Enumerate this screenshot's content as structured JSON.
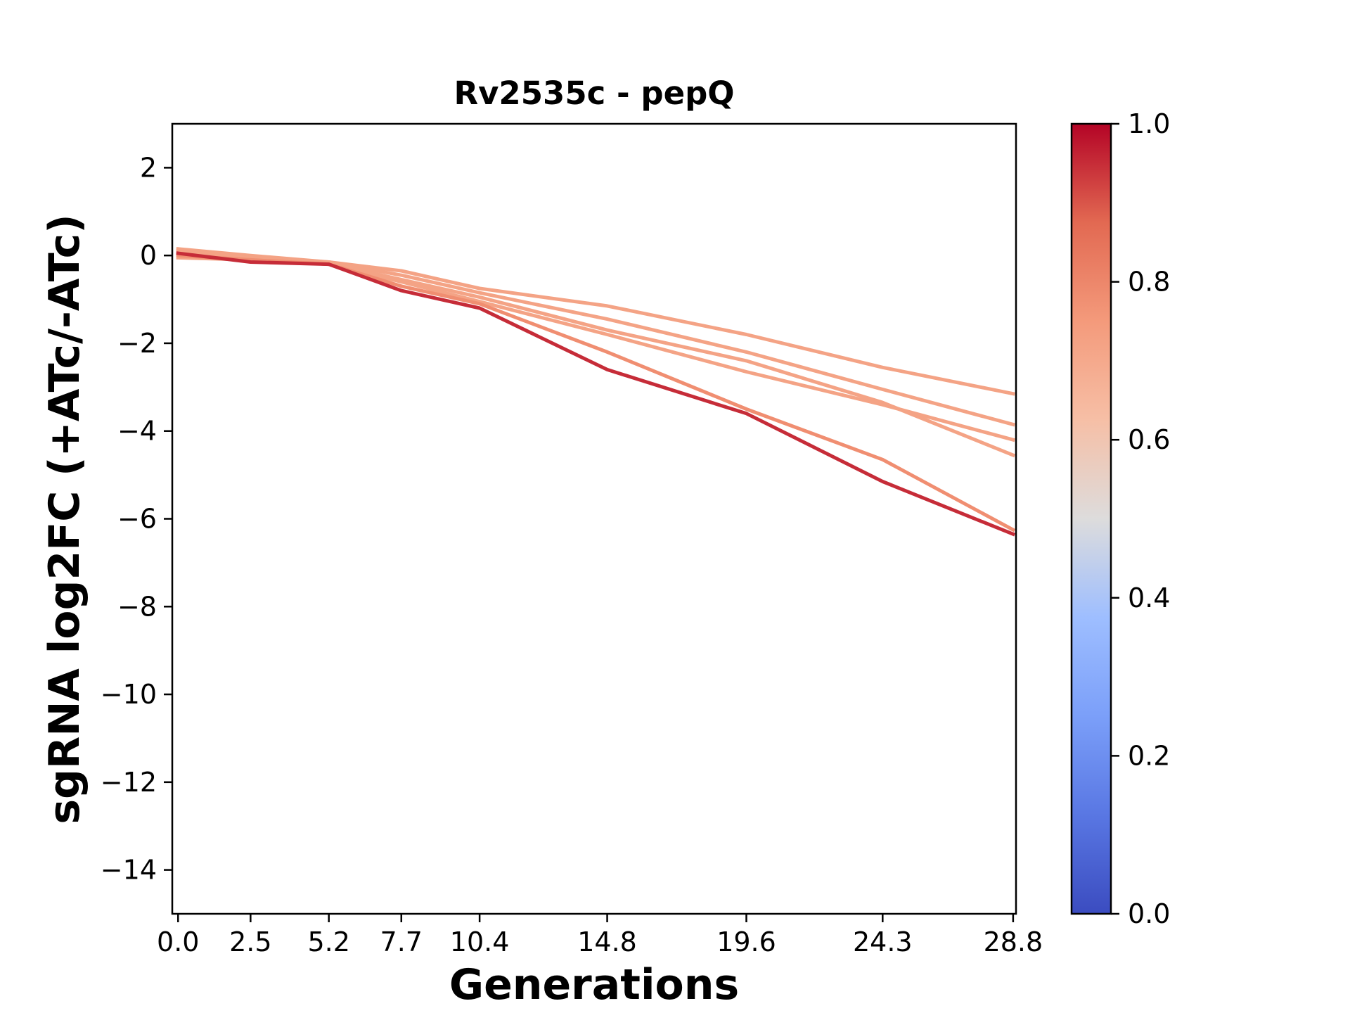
{
  "chart_data": {
    "type": "line",
    "title": "Rv2535c - pepQ",
    "xlabel": "Generations",
    "ylabel": "sgRNA log2FC (+ATc/-ATc)",
    "x": [
      0.0,
      2.5,
      5.2,
      7.7,
      10.4,
      14.8,
      19.6,
      24.3,
      28.8
    ],
    "x_tick_labels": [
      "0.0",
      "2.5",
      "5.2",
      "7.7",
      "10.4",
      "14.8",
      "19.6",
      "24.3",
      "28.8"
    ],
    "xlim": [
      -0.2,
      28.9
    ],
    "ylim": [
      -15,
      3
    ],
    "y_ticks": [
      2,
      0,
      -2,
      -4,
      -6,
      -8,
      -10,
      -12,
      -14
    ],
    "grid": false,
    "series": [
      {
        "color_value": 0.72,
        "values": [
          0.15,
          0.0,
          -0.15,
          -0.35,
          -0.75,
          -1.15,
          -1.8,
          -2.55,
          -3.15
        ]
      },
      {
        "color_value": 0.72,
        "values": [
          0.1,
          -0.05,
          -0.15,
          -0.45,
          -0.85,
          -1.45,
          -2.2,
          -3.05,
          -3.85
        ]
      },
      {
        "color_value": 0.72,
        "values": [
          0.05,
          -0.05,
          -0.18,
          -0.55,
          -0.95,
          -1.7,
          -2.4,
          -3.35,
          -4.55
        ]
      },
      {
        "color_value": 0.72,
        "values": [
          -0.05,
          -0.1,
          -0.2,
          -0.6,
          -1.05,
          -1.8,
          -2.65,
          -3.4,
          -4.2
        ]
      },
      {
        "color_value": 0.78,
        "values": [
          0.0,
          -0.1,
          -0.2,
          -0.7,
          -1.1,
          -2.2,
          -3.5,
          -4.65,
          -6.25
        ]
      },
      {
        "color_value": 0.95,
        "values": [
          0.05,
          -0.15,
          -0.2,
          -0.8,
          -1.2,
          -2.6,
          -3.6,
          -5.15,
          -6.35
        ]
      }
    ],
    "colorbar": {
      "cmap": "coolwarm",
      "range": [
        0.0,
        1.0
      ],
      "tick_labels": [
        "0.0",
        "0.2",
        "0.4",
        "0.6",
        "0.8",
        "1.0"
      ],
      "tick_values": [
        0.0,
        0.2,
        0.4,
        0.6,
        0.8,
        1.0
      ]
    }
  }
}
